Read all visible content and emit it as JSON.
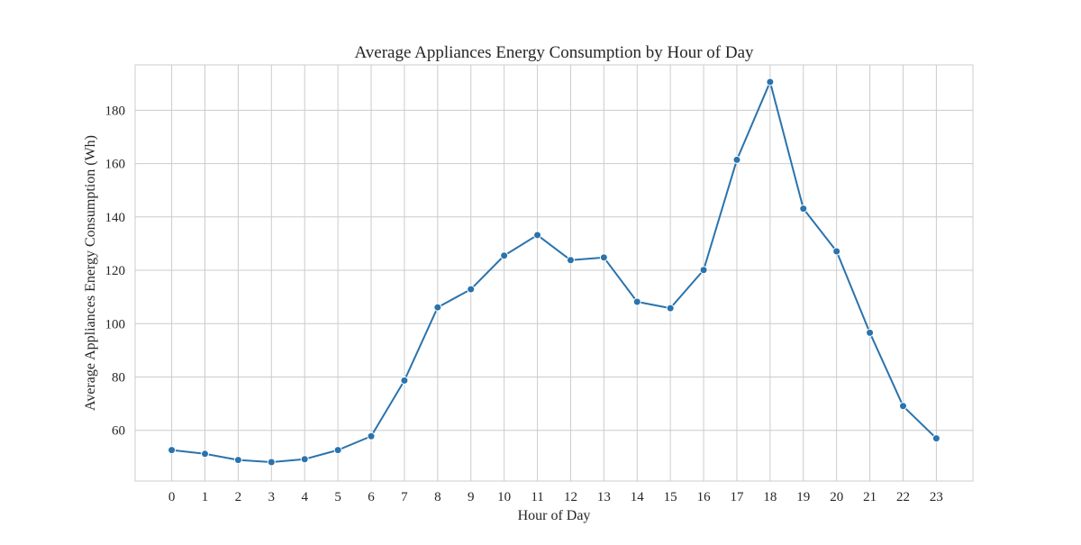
{
  "chart_data": {
    "type": "line",
    "title": "Average Appliances Energy Consumption by Hour of Day",
    "xlabel": "Hour of Day",
    "ylabel": "Average Appliances Energy Consumption (Wh)",
    "x": [
      0,
      1,
      2,
      3,
      4,
      5,
      6,
      7,
      8,
      9,
      10,
      11,
      12,
      13,
      14,
      15,
      16,
      17,
      18,
      19,
      20,
      21,
      22,
      23
    ],
    "x_ticks": [
      "0",
      "1",
      "2",
      "3",
      "4",
      "5",
      "6",
      "7",
      "8",
      "9",
      "10",
      "11",
      "12",
      "13",
      "14",
      "15",
      "16",
      "17",
      "18",
      "19",
      "20",
      "21",
      "22",
      "23"
    ],
    "y_ticks": [
      60,
      80,
      100,
      120,
      140,
      160,
      180
    ],
    "xlim": [
      -1.1,
      24.1
    ],
    "ylim": [
      41,
      197
    ],
    "grid": true,
    "series": [
      {
        "values": [
          52.6,
          51.2,
          48.9,
          48.1,
          49.2,
          52.6,
          57.8,
          78.7,
          106.1,
          112.9,
          125.5,
          133.2,
          123.8,
          124.8,
          108.2,
          105.8,
          120.1,
          161.4,
          190.6,
          143.1,
          127.1,
          96.6,
          69.1,
          57.0
        ],
        "color": "#2a73ad",
        "marker": "circle"
      }
    ]
  }
}
